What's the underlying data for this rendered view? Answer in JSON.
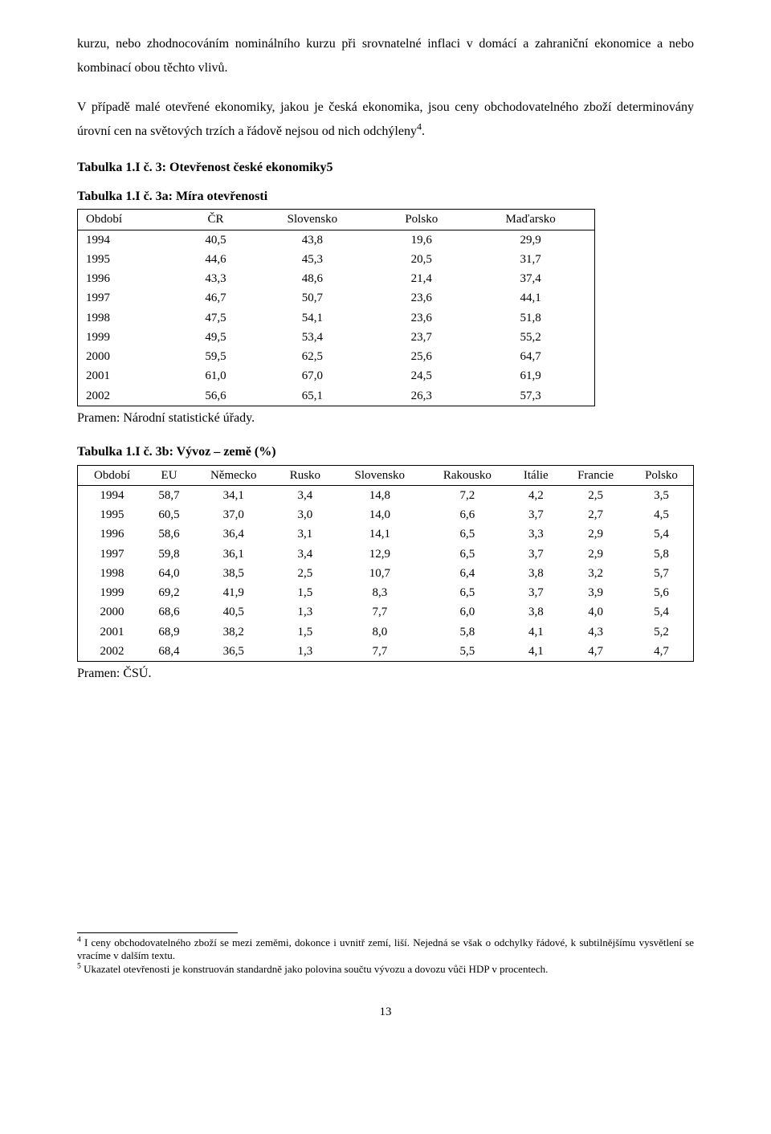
{
  "para1": "kurzu, nebo zhodnocováním nominálního kurzu při srovnatelné inflaci v domácí a zahraniční ekonomice a nebo kombinací obou těchto vlivů.",
  "para2_a": "V případě malé otevřené ekonomiky, jakou je česká ekonomika, jsou ceny obchodovatelného zboží determinovány úrovní cen na světových trzích a řádově nejsou od nich odchýleny",
  "para2_sup": "4",
  "para2_b": ".",
  "t3title_a": "Tabulka 1.I č. 3: Otevřenost české ekonomiky5",
  "t3title_b": "Tabulka 1.I č. 3a: Míra otevřenosti",
  "t3a": {
    "head": [
      "Období",
      "ČR",
      "Slovensko",
      "Polsko",
      "Maďarsko"
    ],
    "rows": [
      [
        "1994",
        "40,5",
        "43,8",
        "19,6",
        "29,9"
      ],
      [
        "1995",
        "44,6",
        "45,3",
        "20,5",
        "31,7"
      ],
      [
        "1996",
        "43,3",
        "48,6",
        "21,4",
        "37,4"
      ],
      [
        "1997",
        "46,7",
        "50,7",
        "23,6",
        "44,1"
      ],
      [
        "1998",
        "47,5",
        "54,1",
        "23,6",
        "51,8"
      ],
      [
        "1999",
        "49,5",
        "53,4",
        "23,7",
        "55,2"
      ],
      [
        "2000",
        "59,5",
        "62,5",
        "25,6",
        "64,7"
      ],
      [
        "2001",
        "61,0",
        "67,0",
        "24,5",
        "61,9"
      ],
      [
        "2002",
        "56,6",
        "65,1",
        "26,3",
        "57,3"
      ]
    ]
  },
  "source3a": "Pramen: Národní statistické úřady.",
  "t3b_title": "Tabulka 1.I č. 3b: Vývoz – země (%)",
  "t3b": {
    "head": [
      "Období",
      "EU",
      "Německo",
      "Rusko",
      "Slovensko",
      "Rakousko",
      "Itálie",
      "Francie",
      "Polsko"
    ],
    "rows": [
      [
        "1994",
        "58,7",
        "34,1",
        "3,4",
        "14,8",
        "7,2",
        "4,2",
        "2,5",
        "3,5"
      ],
      [
        "1995",
        "60,5",
        "37,0",
        "3,0",
        "14,0",
        "6,6",
        "3,7",
        "2,7",
        "4,5"
      ],
      [
        "1996",
        "58,6",
        "36,4",
        "3,1",
        "14,1",
        "6,5",
        "3,3",
        "2,9",
        "5,4"
      ],
      [
        "1997",
        "59,8",
        "36,1",
        "3,4",
        "12,9",
        "6,5",
        "3,7",
        "2,9",
        "5,8"
      ],
      [
        "1998",
        "64,0",
        "38,5",
        "2,5",
        "10,7",
        "6,4",
        "3,8",
        "3,2",
        "5,7"
      ],
      [
        "1999",
        "69,2",
        "41,9",
        "1,5",
        "8,3",
        "6,5",
        "3,7",
        "3,9",
        "5,6"
      ],
      [
        "2000",
        "68,6",
        "40,5",
        "1,3",
        "7,7",
        "6,0",
        "3,8",
        "4,0",
        "5,4"
      ],
      [
        "2001",
        "68,9",
        "38,2",
        "1,5",
        "8,0",
        "5,8",
        "4,1",
        "4,3",
        "5,2"
      ],
      [
        "2002",
        "68,4",
        "36,5",
        "1,3",
        "7,7",
        "5,5",
        "4,1",
        "4,7",
        "4,7"
      ]
    ]
  },
  "source3b": "Pramen: ČSÚ.",
  "fn4_sup": "4",
  "fn4": " I ceny obchodovatelného zboží se mezi zeměmi, dokonce i uvnitř zemí, liší. Nejedná se však o odchylky řádové, k subtilnějšímu vysvětlení se vracíme v dalším textu.",
  "fn5_sup": "5",
  "fn5": " Ukazatel otevřenosti je konstruován standardně jako polovina součtu vývozu a dovozu vůči HDP v procentech.",
  "page": "13"
}
